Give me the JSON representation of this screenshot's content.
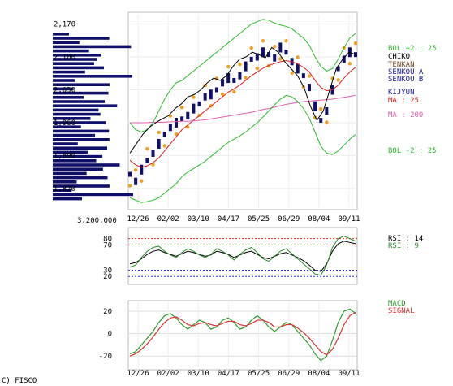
{
  "copyright": "C) FISCO",
  "colors": {
    "bol": "#2cbc2c",
    "chiko": "#000000",
    "tenkan": "#7a4a2a",
    "kijun": "#1a1aa0",
    "ma25": "#e02020",
    "ma200": "#e060b0",
    "rsi14": "#000000",
    "rsi9": "#2a8a2a",
    "macd": "#2aa02a",
    "signal": "#e03030",
    "candle": "#10106a",
    "psar": "#f0a020",
    "volume": "#10106a"
  },
  "chart_data": [
    {
      "type": "candlestick",
      "panel": "price",
      "y_ticks": [
        "2,170",
        "2,100",
        "2,030",
        "1,960",
        "1,890",
        "1,820"
      ],
      "ylim": [
        1780,
        2190
      ],
      "x_ticks": [
        "12/26",
        "02/02",
        "03/10",
        "04/17",
        "05/25",
        "06/29",
        "08/04",
        "09/11"
      ],
      "volume_label": "3,200,000",
      "legend": [
        "BOL +2 : 25",
        "CHIKO",
        "TENKAN",
        "SENKOU A",
        "SENKOU B",
        "KIJYUN",
        "MA : 25",
        "MA : 200",
        "BOL -2 : 25"
      ],
      "series": [
        {
          "name": "close",
          "values": [
            1850,
            1835,
            1860,
            1880,
            1895,
            1915,
            1935,
            1950,
            1960,
            1968,
            1975,
            1990,
            2000,
            2015,
            2020,
            2030,
            2045,
            2055,
            2050,
            2060,
            2080,
            2095,
            2100,
            2110,
            2105,
            2098,
            2120,
            2110,
            2090,
            2075,
            2060,
            2035,
            1995,
            1965,
            1985,
            2030,
            2075,
            2095,
            2110,
            2105
          ]
        },
        {
          "name": "MA : 25",
          "values": [
            1880,
            1870,
            1865,
            1868,
            1875,
            1885,
            1900,
            1915,
            1930,
            1945,
            1955,
            1965,
            1975,
            1985,
            1995,
            2005,
            2015,
            2025,
            2032,
            2040,
            2050,
            2060,
            2068,
            2076,
            2082,
            2086,
            2090,
            2092,
            2090,
            2085,
            2078,
            2068,
            2050,
            2035,
            2028,
            2030,
            2040,
            2055,
            2068,
            2078
          ]
        },
        {
          "name": "MA : 200",
          "values": [
            1960,
            1960,
            1960,
            1960,
            1961,
            1961,
            1961,
            1962,
            1962,
            1963,
            1963,
            1964,
            1965,
            1966,
            1968,
            1970,
            1972,
            1974,
            1976,
            1978,
            1980,
            1982,
            1985,
            1988,
            1990,
            1993,
            1996,
            1999,
            2001,
            2003,
            2005,
            2006,
            2007,
            2008,
            2009,
            2010,
            2012,
            2014,
            2016,
            2018
          ]
        },
        {
          "name": "BOL +2 : 25",
          "values": [
            1960,
            1945,
            1940,
            1945,
            1960,
            1985,
            2010,
            2030,
            2045,
            2050,
            2060,
            2070,
            2080,
            2090,
            2100,
            2110,
            2120,
            2130,
            2140,
            2150,
            2160,
            2170,
            2175,
            2180,
            2178,
            2172,
            2168,
            2165,
            2160,
            2150,
            2140,
            2125,
            2100,
            2080,
            2070,
            2075,
            2095,
            2120,
            2140,
            2150
          ]
        },
        {
          "name": "BOL -2 : 25",
          "values": [
            1800,
            1795,
            1790,
            1792,
            1795,
            1800,
            1810,
            1820,
            1830,
            1845,
            1855,
            1862,
            1870,
            1878,
            1888,
            1898,
            1908,
            1918,
            1925,
            1932,
            1940,
            1950,
            1960,
            1972,
            1985,
            1998,
            2010,
            2018,
            2015,
            2005,
            1990,
            1970,
            1940,
            1910,
            1895,
            1892,
            1900,
            1912,
            1925,
            1935
          ]
        },
        {
          "name": "CHIKO",
          "values": [
            1895,
            1915,
            1935,
            1950,
            1960,
            1968,
            1975,
            1990,
            2000,
            2015,
            2020,
            2030,
            2045,
            2055,
            2050,
            2060,
            2080,
            2095,
            2100,
            2110,
            2105,
            2098,
            2120,
            2110,
            2090,
            2075,
            2060,
            2035,
            1995,
            1965,
            1985,
            2030,
            2075,
            2095,
            2110,
            2105
          ]
        }
      ]
    },
    {
      "type": "line",
      "panel": "rsi",
      "y_ticks": [
        "80",
        "70",
        "30",
        "20"
      ],
      "ylim": [
        10,
        95
      ],
      "legend": [
        "RSI : 14",
        "RSI : 9"
      ],
      "series": [
        {
          "name": "RSI : 14",
          "values": [
            40,
            42,
            48,
            55,
            60,
            62,
            58,
            55,
            52,
            56,
            60,
            58,
            55,
            52,
            54,
            60,
            58,
            55,
            50,
            54,
            58,
            60,
            55,
            50,
            48,
            52,
            56,
            58,
            54,
            50,
            45,
            38,
            30,
            28,
            40,
            60,
            72,
            76,
            74,
            72
          ]
        },
        {
          "name": "RSI : 9",
          "values": [
            35,
            38,
            50,
            60,
            66,
            68,
            60,
            54,
            50,
            58,
            64,
            60,
            54,
            50,
            55,
            64,
            60,
            54,
            46,
            55,
            62,
            66,
            58,
            48,
            44,
            52,
            60,
            64,
            56,
            48,
            40,
            32,
            24,
            22,
            38,
            66,
            80,
            84,
            80,
            76
          ]
        }
      ]
    },
    {
      "type": "line",
      "panel": "macd",
      "y_ticks": [
        "20",
        "0",
        "-20"
      ],
      "ylim": [
        -30,
        28
      ],
      "legend": [
        "MACD",
        "SIGNAL"
      ],
      "series": [
        {
          "name": "MACD",
          "values": [
            -18,
            -16,
            -10,
            -4,
            2,
            10,
            16,
            18,
            14,
            8,
            4,
            8,
            12,
            10,
            4,
            6,
            12,
            14,
            10,
            4,
            6,
            12,
            16,
            12,
            6,
            2,
            6,
            10,
            8,
            2,
            -4,
            -10,
            -18,
            -24,
            -20,
            -6,
            10,
            20,
            22,
            18
          ]
        },
        {
          "name": "SIGNAL",
          "values": [
            -20,
            -18,
            -14,
            -9,
            -3,
            4,
            10,
            14,
            15,
            12,
            8,
            7,
            9,
            10,
            8,
            7,
            9,
            11,
            11,
            8,
            7,
            9,
            12,
            12,
            10,
            6,
            6,
            8,
            8,
            5,
            1,
            -4,
            -10,
            -16,
            -19,
            -14,
            -4,
            8,
            16,
            19
          ]
        }
      ]
    }
  ]
}
